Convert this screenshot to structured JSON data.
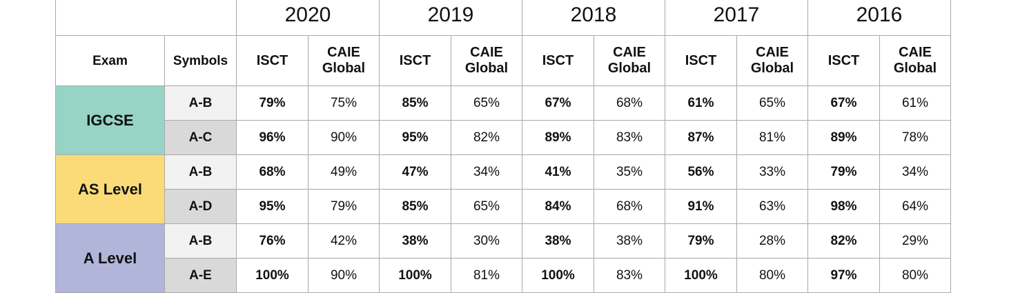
{
  "years": [
    "2020",
    "2019",
    "2018",
    "2017",
    "2016"
  ],
  "headers": {
    "exam": "Exam",
    "symbols": "Symbols",
    "isct": "ISCT",
    "caie_line1": "CAIE",
    "caie_line2": "Global"
  },
  "colors": {
    "igcse": "#98d4c5",
    "as_level": "#fbdb78",
    "a_level": "#b1b5da",
    "symbol_light": "#f2f2f2",
    "symbol_dark": "#d9d9d9",
    "grid": "#a8a8a8"
  },
  "groups": [
    {
      "exam": "IGCSE",
      "rows": [
        {
          "symbol": "A-B",
          "values": [
            [
              "79%",
              "75%"
            ],
            [
              "85%",
              "65%"
            ],
            [
              "67%",
              "68%"
            ],
            [
              "61%",
              "65%"
            ],
            [
              "67%",
              "61%"
            ]
          ]
        },
        {
          "symbol": "A-C",
          "values": [
            [
              "96%",
              "90%"
            ],
            [
              "95%",
              "82%"
            ],
            [
              "89%",
              "83%"
            ],
            [
              "87%",
              "81%"
            ],
            [
              "89%",
              "78%"
            ]
          ]
        }
      ]
    },
    {
      "exam": "AS Level",
      "rows": [
        {
          "symbol": "A-B",
          "values": [
            [
              "68%",
              "49%"
            ],
            [
              "47%",
              "34%"
            ],
            [
              "41%",
              "35%"
            ],
            [
              "56%",
              "33%"
            ],
            [
              "79%",
              "34%"
            ]
          ]
        },
        {
          "symbol": "A-D",
          "values": [
            [
              "95%",
              "79%"
            ],
            [
              "85%",
              "65%"
            ],
            [
              "84%",
              "68%"
            ],
            [
              "91%",
              "63%"
            ],
            [
              "98%",
              "64%"
            ]
          ]
        }
      ]
    },
    {
      "exam": "A Level",
      "rows": [
        {
          "symbol": "A-B",
          "values": [
            [
              "76%",
              "42%"
            ],
            [
              "38%",
              "30%"
            ],
            [
              "38%",
              "38%"
            ],
            [
              "79%",
              "28%"
            ],
            [
              "82%",
              "29%"
            ]
          ]
        },
        {
          "symbol": "A-E",
          "values": [
            [
              "100%",
              "90%"
            ],
            [
              "100%",
              "81%"
            ],
            [
              "100%",
              "83%"
            ],
            [
              "100%",
              "80%"
            ],
            [
              "97%",
              "80%"
            ]
          ]
        }
      ]
    }
  ]
}
